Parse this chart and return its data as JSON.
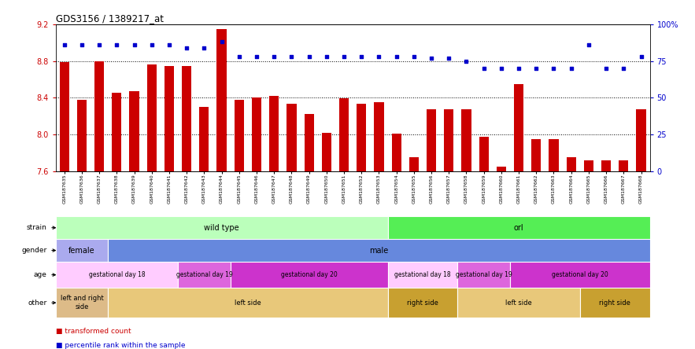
{
  "title": "GDS3156 / 1389217_at",
  "samples": [
    "GSM187635",
    "GSM187636",
    "GSM187637",
    "GSM187638",
    "GSM187639",
    "GSM187640",
    "GSM187641",
    "GSM187642",
    "GSM187643",
    "GSM187644",
    "GSM187645",
    "GSM187646",
    "GSM187647",
    "GSM187648",
    "GSM187649",
    "GSM187650",
    "GSM187651",
    "GSM187652",
    "GSM187653",
    "GSM187654",
    "GSM187655",
    "GSM187656",
    "GSM187657",
    "GSM187658",
    "GSM187659",
    "GSM187660",
    "GSM187661",
    "GSM187662",
    "GSM187663",
    "GSM187664",
    "GSM187665",
    "GSM187666",
    "GSM187667",
    "GSM187668"
  ],
  "bar_values": [
    8.79,
    8.38,
    8.8,
    8.45,
    8.47,
    8.76,
    8.75,
    8.75,
    8.3,
    9.15,
    8.38,
    8.4,
    8.42,
    8.33,
    8.22,
    8.02,
    8.39,
    8.33,
    8.35,
    8.01,
    7.75,
    8.27,
    8.27,
    8.27,
    7.97,
    7.65,
    8.55,
    7.95,
    7.95,
    7.75,
    7.72,
    7.72,
    7.72,
    8.27
  ],
  "percentile_values": [
    86,
    86,
    86,
    86,
    86,
    86,
    86,
    84,
    84,
    88,
    78,
    78,
    78,
    78,
    78,
    78,
    78,
    78,
    78,
    78,
    78,
    77,
    77,
    75,
    70,
    70,
    70,
    70,
    70,
    70,
    86,
    70,
    70,
    78
  ],
  "ylim_left": [
    7.6,
    9.2
  ],
  "ylim_right": [
    0,
    100
  ],
  "yticks_left": [
    7.6,
    8.0,
    8.4,
    8.8,
    9.2
  ],
  "yticks_right": [
    0,
    25,
    50,
    75,
    100
  ],
  "bar_color": "#cc0000",
  "dot_color": "#0000cc",
  "strain_blocks": [
    {
      "label": "wild type",
      "start": 0,
      "end": 19,
      "color": "#bbffbb"
    },
    {
      "label": "orl",
      "start": 19,
      "end": 34,
      "color": "#55ee55"
    }
  ],
  "gender_blocks": [
    {
      "label": "female",
      "start": 0,
      "end": 3,
      "color": "#aaaaee"
    },
    {
      "label": "male",
      "start": 3,
      "end": 34,
      "color": "#6688dd"
    }
  ],
  "age_blocks": [
    {
      "label": "gestational day 18",
      "start": 0,
      "end": 7,
      "color": "#ffccff"
    },
    {
      "label": "gestational day 19",
      "start": 7,
      "end": 10,
      "color": "#dd66dd"
    },
    {
      "label": "gestational day 20",
      "start": 10,
      "end": 19,
      "color": "#cc33cc"
    },
    {
      "label": "gestational day 18",
      "start": 19,
      "end": 23,
      "color": "#ffccff"
    },
    {
      "label": "gestational day 19",
      "start": 23,
      "end": 26,
      "color": "#dd66dd"
    },
    {
      "label": "gestational day 20",
      "start": 26,
      "end": 34,
      "color": "#cc33cc"
    }
  ],
  "other_blocks": [
    {
      "label": "left and right\nside",
      "start": 0,
      "end": 3,
      "color": "#ddbb88"
    },
    {
      "label": "left side",
      "start": 3,
      "end": 19,
      "color": "#e8c87a"
    },
    {
      "label": "right side",
      "start": 19,
      "end": 23,
      "color": "#c8a030"
    },
    {
      "label": "left side",
      "start": 23,
      "end": 30,
      "color": "#e8c87a"
    },
    {
      "label": "right side",
      "start": 30,
      "end": 34,
      "color": "#c8a030"
    }
  ],
  "row_labels": [
    "strain",
    "gender",
    "age",
    "other"
  ],
  "bg_color": "#ffffff"
}
